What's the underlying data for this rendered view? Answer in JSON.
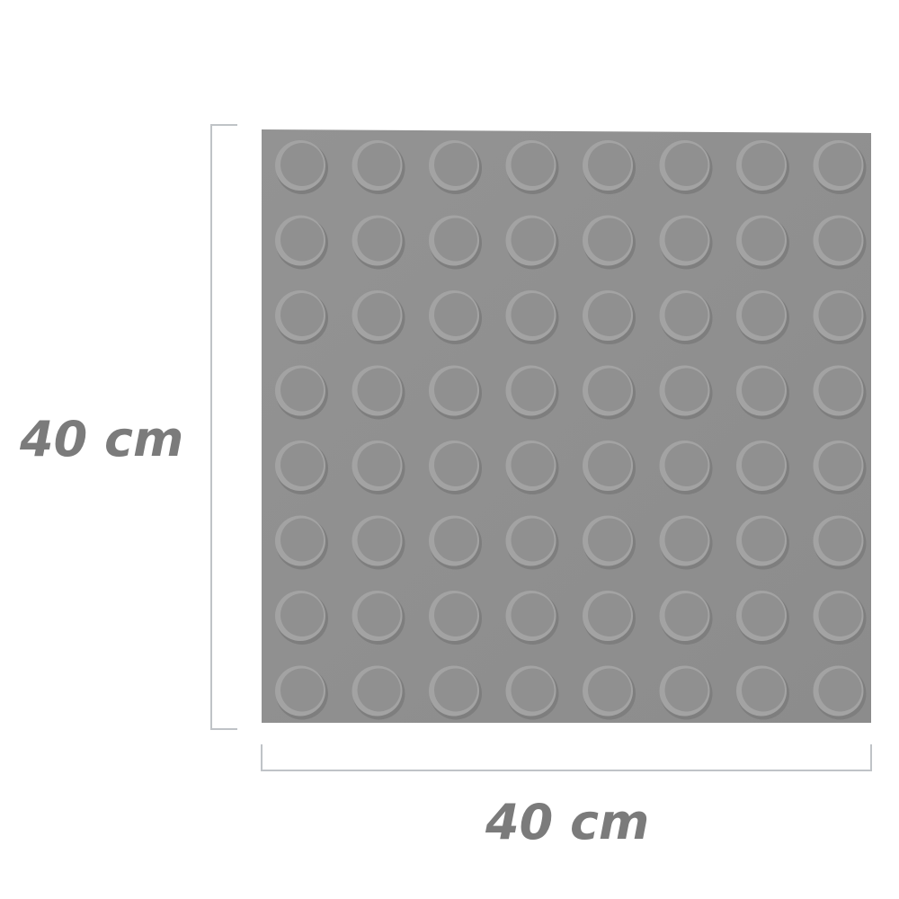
{
  "product": {
    "name": "tactile-paving-tile",
    "grid": {
      "rows": 8,
      "cols": 8
    },
    "colors": {
      "tile": "#8f8f8f",
      "dome_face": "#909090",
      "dome_shadow": "#7e7e7e",
      "dome_highlight": "#a3a3a3",
      "bracket": "#bfc3c7",
      "label": "#7b7b7b"
    }
  },
  "dimensions": {
    "height_label": "40 cm",
    "width_label": "40 cm"
  }
}
